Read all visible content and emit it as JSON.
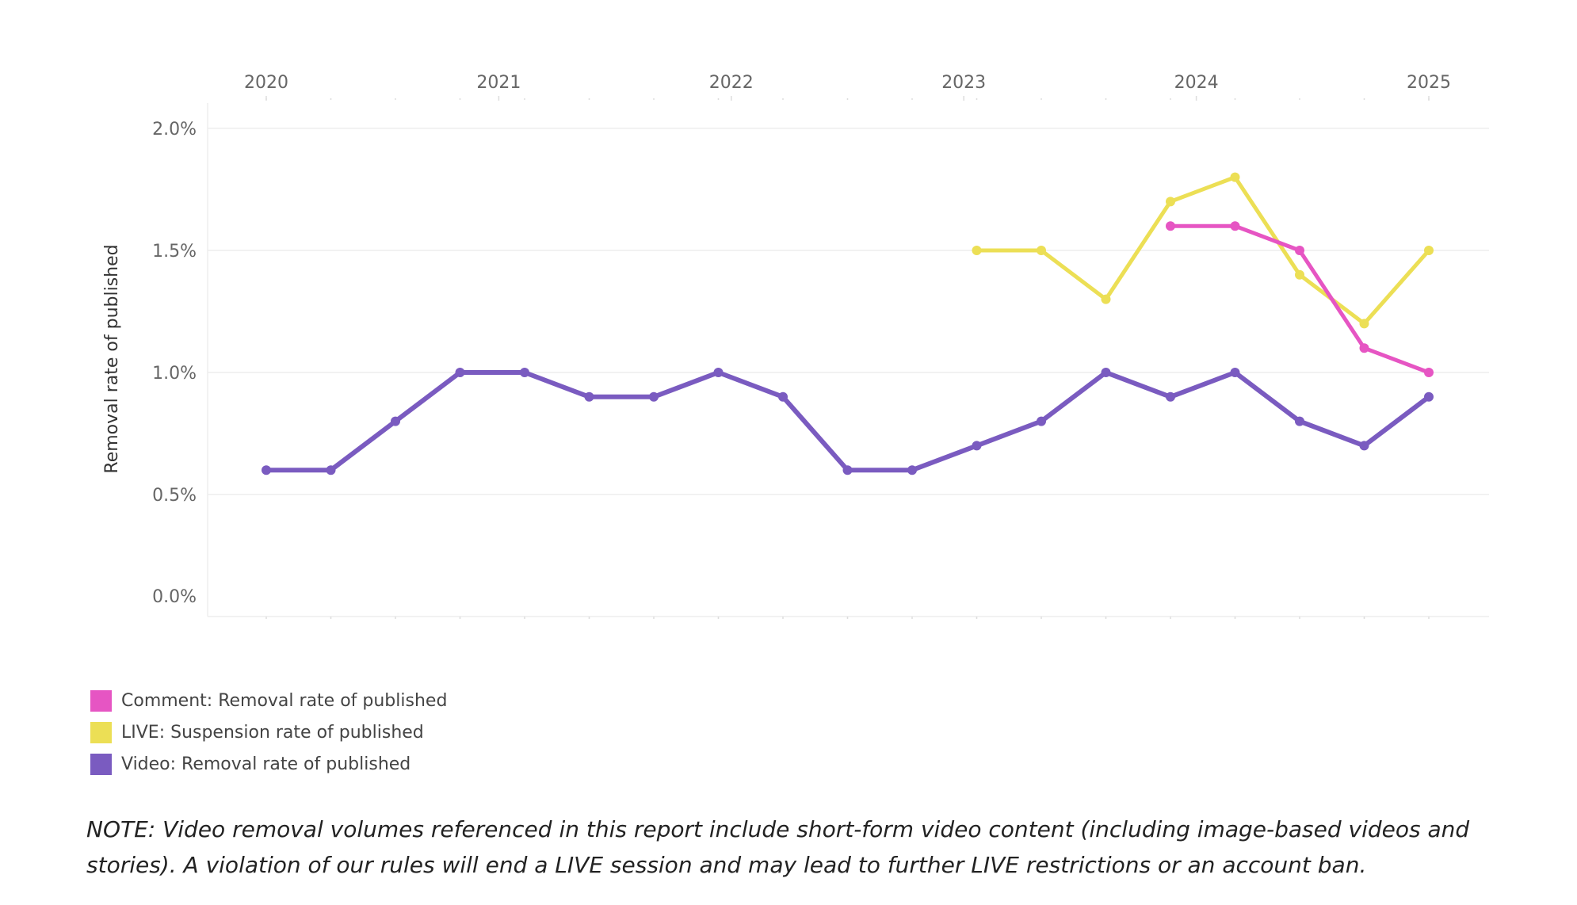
{
  "chart_data": {
    "type": "line",
    "title": "",
    "xlabel": "",
    "ylabel": "Removal rate of published",
    "x_tick_labels": [
      "2020",
      "2021",
      "2022",
      "2023",
      "2024",
      "2025"
    ],
    "y_tick_labels": [
      "0.0%",
      "0.5%",
      "1.0%",
      "1.5%",
      "2.0%"
    ],
    "ylim": [
      0,
      2.0
    ],
    "y_unit": "%",
    "grid": true,
    "legend_position": "bottom-left",
    "point_count": 19,
    "series": [
      {
        "name": "Comment: Removal rate of published",
        "color": "#e655c3",
        "start_index": 14,
        "values": [
          1.6,
          1.6,
          1.5,
          1.1,
          1.0
        ]
      },
      {
        "name": "LIVE: Suspension rate of published",
        "color": "#ecdf55",
        "start_index": 11,
        "values": [
          1.5,
          1.5,
          1.3,
          1.7,
          1.8,
          1.4,
          1.2,
          1.5
        ]
      },
      {
        "name": "Video: Removal rate of published",
        "color": "#7a5bc0",
        "start_index": 0,
        "values": [
          0.6,
          0.6,
          0.8,
          1.0,
          1.0,
          0.9,
          0.9,
          1.0,
          0.9,
          0.6,
          0.6,
          0.7,
          0.8,
          1.0,
          0.9,
          1.0,
          0.8,
          0.7,
          0.9
        ]
      }
    ]
  },
  "note": "NOTE: Video removal volumes referenced in this report include short-form video content (including image-based videos and stories). A violation of our rules will end a LIVE session and may lead to further LIVE restrictions or an account ban."
}
